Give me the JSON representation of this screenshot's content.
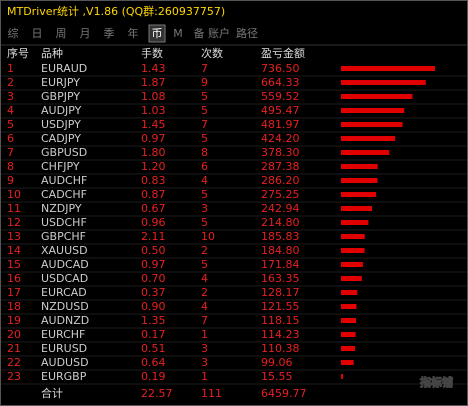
{
  "header": {
    "title": "MTDriver统计 ,V1.86 (QQ群:260937757)"
  },
  "tabs": [
    "综",
    "日",
    "周",
    "月",
    "季",
    "年",
    "币",
    "M",
    "备",
    "账户",
    "路径"
  ],
  "active_tab": 6,
  "table": {
    "columns": [
      "序号",
      "品种",
      "手数",
      "次数",
      "盈亏金额"
    ],
    "rows": [
      [
        "1",
        "EURAUD",
        "1.43",
        "7",
        "736.50"
      ],
      [
        "2",
        "EURJPY",
        "1.87",
        "9",
        "664.33"
      ],
      [
        "3",
        "GBPJPY",
        "1.08",
        "5",
        "559.52"
      ],
      [
        "4",
        "AUDJPY",
        "1.03",
        "5",
        "495.47"
      ],
      [
        "5",
        "USDJPY",
        "1.45",
        "7",
        "481.97"
      ],
      [
        "6",
        "CADJPY",
        "0.97",
        "5",
        "424.20"
      ],
      [
        "7",
        "GBPUSD",
        "1.80",
        "8",
        "378.30"
      ],
      [
        "8",
        "CHFJPY",
        "1.20",
        "6",
        "287.38"
      ],
      [
        "9",
        "AUDCHF",
        "0.83",
        "4",
        "286.20"
      ],
      [
        "10",
        "CADCHF",
        "0.87",
        "5",
        "275.25"
      ],
      [
        "11",
        "NZDJPY",
        "0.67",
        "3",
        "242.94"
      ],
      [
        "12",
        "USDCHF",
        "0.96",
        "5",
        "214.80"
      ],
      [
        "13",
        "GBPCHF",
        "2.11",
        "10",
        "185.83"
      ],
      [
        "14",
        "XAUUSD",
        "0.50",
        "2",
        "184.80"
      ],
      [
        "15",
        "AUDCAD",
        "0.97",
        "5",
        "171.84"
      ],
      [
        "16",
        "USDCAD",
        "0.70",
        "4",
        "163.35"
      ],
      [
        "17",
        "EURCAD",
        "0.37",
        "2",
        "128.17"
      ],
      [
        "18",
        "NZDUSD",
        "0.90",
        "4",
        "121.55"
      ],
      [
        "19",
        "AUDNZD",
        "1.35",
        "7",
        "118.15"
      ],
      [
        "20",
        "EURCHF",
        "0.17",
        "1",
        "114.23"
      ],
      [
        "21",
        "EURUSD",
        "0.51",
        "3",
        "110.38"
      ],
      [
        "22",
        "AUDUSD",
        "0.64",
        "3",
        "99.06"
      ],
      [
        "23",
        "EURGBP",
        "0.19",
        "1",
        "15.55"
      ]
    ],
    "total": [
      "合计",
      "22.57",
      "111",
      "6459.77"
    ]
  },
  "watermark": "指标铺"
}
